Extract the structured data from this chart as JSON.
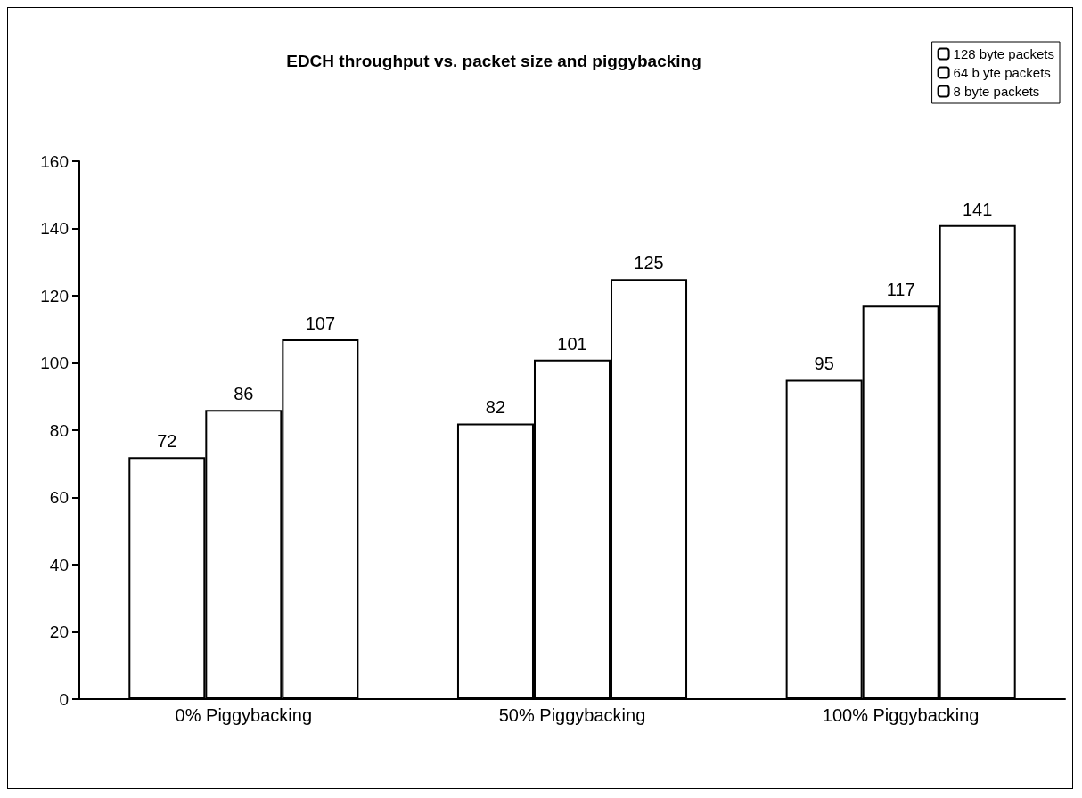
{
  "chart_data": {
    "type": "bar",
    "title": "EDCH throughput vs. packet size and piggybacking",
    "categories": [
      "0% Piggybacking",
      "50% Piggybacking",
      "100% Piggybacking"
    ],
    "series": [
      {
        "name": "128 byte packets",
        "color": "#ffffff",
        "values": [
          72,
          82,
          95
        ]
      },
      {
        "name": "64 b yte packets",
        "color": "#ffffff",
        "values": [
          86,
          101,
          117
        ]
      },
      {
        "name": "8 byte packets",
        "color": "#ffffff",
        "values": [
          107,
          125,
          141
        ]
      }
    ],
    "ylim": [
      0,
      160
    ],
    "yticks": [
      0,
      20,
      40,
      60,
      80,
      100,
      120,
      140,
      160
    ],
    "grid": false,
    "legend": "top right",
    "data_labels": true
  }
}
